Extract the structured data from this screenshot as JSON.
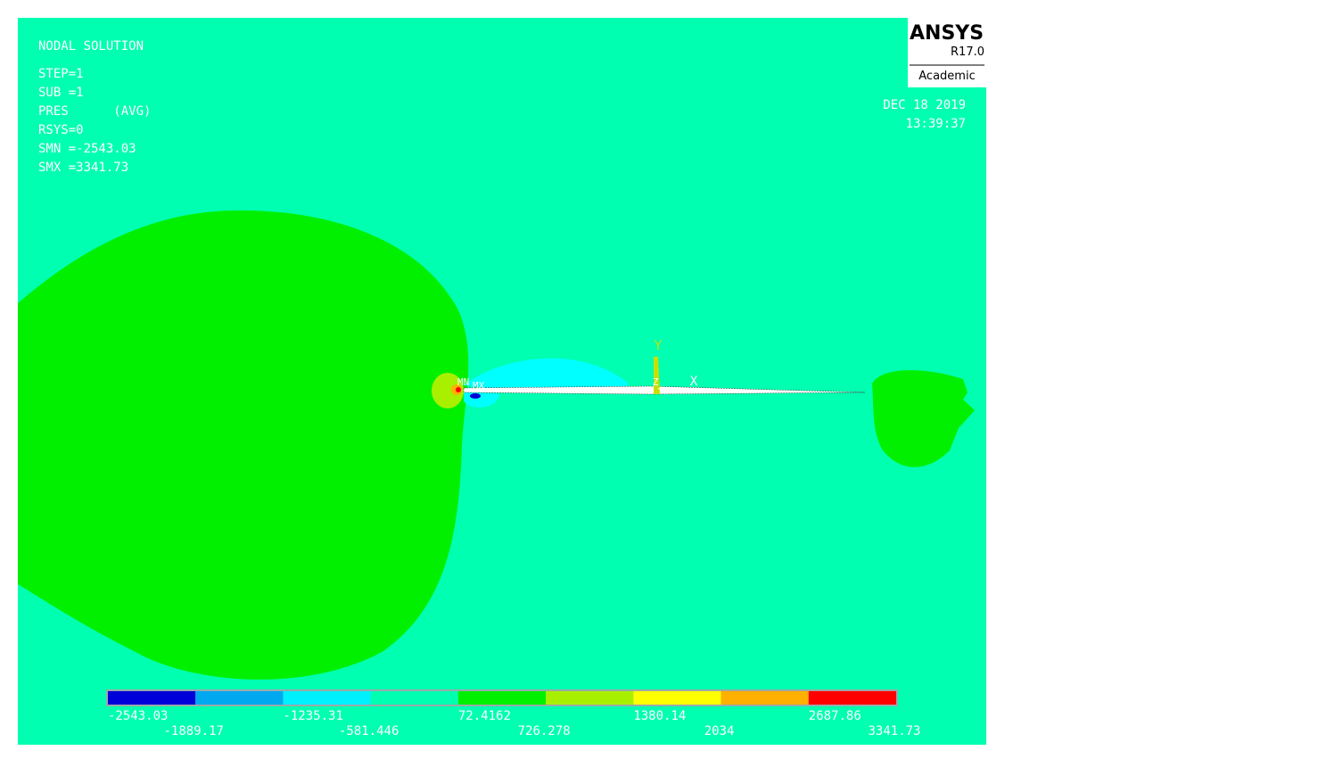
{
  "header": {
    "title": "NODAL SOLUTION",
    "lines": [
      "STEP=1",
      "SUB =1",
      "PRES      (AVG)",
      "RSYS=0",
      "SMN =-2543.03",
      "SMX =3341.73"
    ]
  },
  "logo": {
    "name": "ANSYS",
    "version": "R17.0",
    "edition": "Academic"
  },
  "timestamp": {
    "date": "DEC 18 2019",
    "time": "13:39:37"
  },
  "markers": {
    "min": "MN",
    "max": "MX",
    "x_axis": "X",
    "y_axis": "Y",
    "z_axis": "Z"
  },
  "legend": {
    "colors": [
      "#0000d8",
      "#00a8f0",
      "#00f0ff",
      "#00ffb0",
      "#00f000",
      "#a8f000",
      "#ffff00",
      "#ffb000",
      "#ff0000"
    ],
    "labels": [
      "-2543.03",
      "-1889.17",
      "-1235.31",
      "-581.446",
      "72.4162",
      "726.278",
      "1380.14",
      "2034",
      "2687.86",
      "3341.73"
    ]
  }
}
